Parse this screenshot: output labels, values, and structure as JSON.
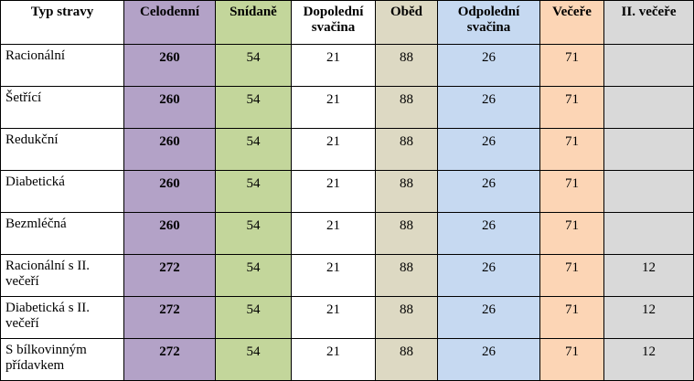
{
  "table": {
    "header": [
      "Typ stravy",
      "Celodenní",
      "Snídaně",
      "Dopolední svačina",
      "Oběd",
      "Odpolední svačina",
      "Večeře",
      "II. večeře"
    ],
    "rows": [
      [
        "Racionální",
        260,
        54,
        21,
        88,
        26,
        71,
        null
      ],
      [
        "Šetřící",
        260,
        54,
        21,
        88,
        26,
        71,
        null
      ],
      [
        "Redukční",
        260,
        54,
        21,
        88,
        26,
        71,
        null
      ],
      [
        "Diabetická",
        260,
        54,
        21,
        88,
        26,
        71,
        null
      ],
      [
        "Bezmléčná",
        260,
        54,
        21,
        88,
        26,
        71,
        null
      ],
      [
        "Racionální s II. večeří",
        272,
        54,
        21,
        88,
        26,
        71,
        12
      ],
      [
        "Diabetická s II. večeří",
        272,
        54,
        21,
        88,
        26,
        71,
        12
      ],
      [
        "S bílkovinným přídavkem",
        272,
        54,
        21,
        88,
        26,
        71,
        12
      ]
    ]
  }
}
